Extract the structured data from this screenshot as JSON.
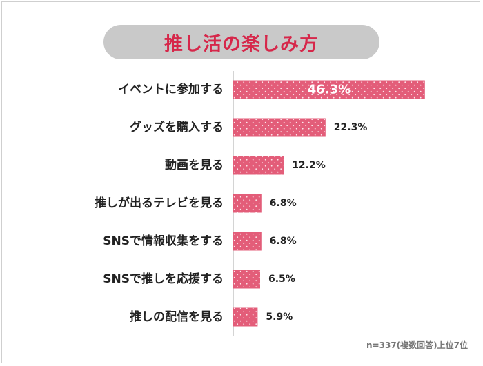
{
  "chart_data": {
    "type": "bar",
    "orientation": "horizontal",
    "title": "推し活の楽しみ方",
    "categories": [
      "イベントに参加する",
      "グッズを購入する",
      "動画を見る",
      "推しが出るテレビを見る",
      "SNSで情報収集をする",
      "SNSで推しを応援する",
      "推しの配信を見る"
    ],
    "values": [
      46.3,
      22.3,
      12.2,
      6.8,
      6.8,
      6.5,
      5.9
    ],
    "value_labels": [
      "46.3%",
      "22.3%",
      "12.2%",
      "6.8%",
      "6.8%",
      "6.5%",
      "5.9%"
    ],
    "unit": "%",
    "xlim": [
      0,
      100
    ],
    "grid": false,
    "legend": "none",
    "bar_color": "#e35d79",
    "note": "n=337(複数回答)上位7位"
  }
}
